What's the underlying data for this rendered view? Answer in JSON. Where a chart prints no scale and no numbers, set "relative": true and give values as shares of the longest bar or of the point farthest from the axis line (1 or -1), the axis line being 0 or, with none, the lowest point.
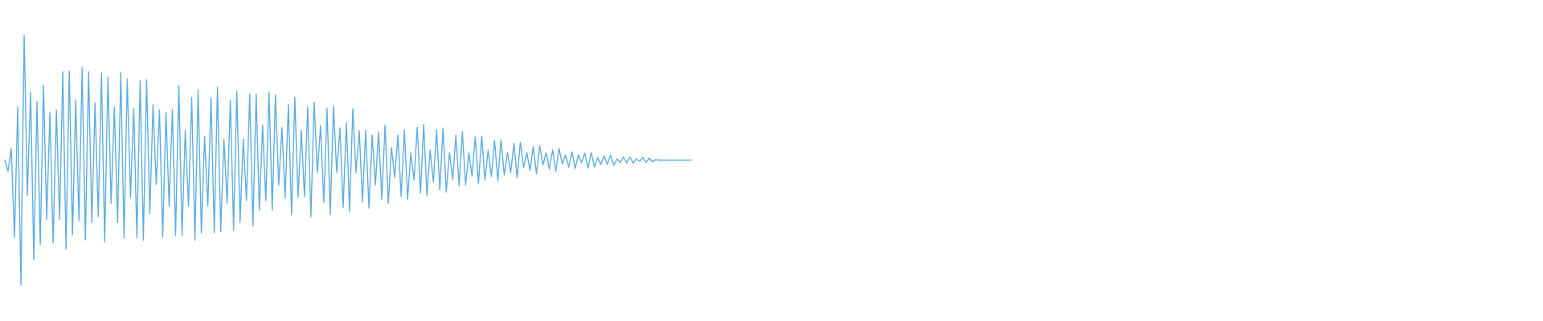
{
  "chart_data": {
    "type": "line",
    "relative": true,
    "color": "#5dade2",
    "categories": [
      null,
      null,
      null,
      null,
      null,
      null,
      null,
      null,
      null,
      null,
      null,
      null,
      null,
      null,
      null,
      null,
      null,
      null,
      null,
      null,
      null,
      null,
      null,
      null,
      null,
      null,
      null,
      null,
      null,
      null,
      null,
      null,
      null,
      null,
      null,
      null,
      null,
      null,
      null,
      null,
      null,
      null,
      null,
      null,
      null,
      null,
      null,
      null,
      null,
      null,
      null,
      null,
      null,
      null,
      null,
      null,
      null,
      null,
      null,
      null,
      null,
      null,
      null,
      null,
      null,
      null,
      null,
      null,
      null,
      null,
      null,
      null,
      null,
      null,
      null,
      null,
      null,
      null,
      null,
      null,
      null,
      null,
      null,
      null,
      null,
      null,
      null,
      null,
      null,
      null,
      null,
      null,
      null,
      null,
      null,
      null,
      null,
      null,
      null,
      null,
      null,
      null,
      null,
      null,
      null,
      null,
      null,
      null,
      null,
      null,
      null,
      null,
      null,
      null,
      null,
      null,
      null,
      null,
      null,
      null,
      null,
      null,
      null,
      null,
      null,
      null,
      null,
      null,
      null,
      null,
      null,
      null,
      null,
      null,
      null,
      null,
      null,
      null,
      null,
      null,
      null,
      null,
      null,
      null,
      null,
      null,
      null,
      null,
      null,
      null,
      null,
      null,
      null,
      null,
      null,
      null,
      null,
      null,
      null,
      null,
      null,
      null,
      null,
      null,
      null,
      null,
      null,
      null,
      null,
      null,
      null,
      null,
      null,
      null,
      null,
      null,
      null,
      null,
      null,
      null,
      null,
      null,
      null,
      null,
      null,
      null,
      null,
      null,
      null,
      null,
      null,
      null,
      null,
      null,
      null,
      null,
      null,
      null,
      null,
      null,
      null,
      null,
      null,
      null,
      null,
      null,
      null,
      null,
      null,
      null,
      null,
      null,
      null,
      null
    ],
    "values": [
      0.5,
      0.455,
      0.547,
      0.19,
      0.713,
      0,
      1,
      0.359,
      0.772,
      0.1,
      0.734,
      0.161,
      0.8,
      0.263,
      0.691,
      0.168,
      0.7,
      0.263,
      0.854,
      0.143,
      0.857,
      0.2,
      0.742,
      0.257,
      0.871,
      0.18,
      0.854,
      0.25,
      0.729,
      0.273,
      0.849,
      0.171,
      0.833,
      0.327,
      0.713,
      0.25,
      0.852,
      0.188,
      0.825,
      0.35,
      0.707,
      0.188,
      0.818,
      0.179,
      0.822,
      0.284,
      0.723,
      0.402,
      0.7,
      0.193,
      0.691,
      0.316,
      0.702,
      0.198,
      0.8,
      0.198,
      0.62,
      0.316,
      0.75,
      0.179,
      0.78,
      0.207,
      0.595,
      0.316,
      0.75,
      0.209,
      0.793,
      0.214,
      0.584,
      0.327,
      0.74,
      0.22,
      0.777,
      0.25,
      0.584,
      0.338,
      0.764,
      0.236,
      0.764,
      0.3,
      0.64,
      0.338,
      0.772,
      0.3,
      0.761,
      0.4,
      0.63,
      0.348,
      0.723,
      0.28,
      0.752,
      0.35,
      0.62,
      0.354,
      0.713,
      0.273,
      0.732,
      0.45,
      0.638,
      0.33,
      0.707,
      0.282,
      0.716,
      0.45,
      0.629,
      0.311,
      0.65,
      0.295,
      0.706,
      0.45,
      0.618,
      0.332,
      0.62,
      0.308,
      0.6,
      0.4,
      0.613,
      0.343,
      0.64,
      0.327,
      0.55,
      0.43,
      0.6,
      0.354,
      0.62,
      0.343,
      0.53,
      0.42,
      0.632,
      0.368,
      0.643,
      0.359,
      0.54,
      0.413,
      0.62,
      0.38,
      0.629,
      0.372,
      0.53,
      0.423,
      0.6,
      0.397,
      0.614,
      0.4,
      0.53,
      0.436,
      0.593,
      0.407,
      0.597,
      0.42,
      0.54,
      0.434,
      0.579,
      0.418,
      0.582,
      0.44,
      0.53,
      0.45,
      0.568,
      0.429,
      0.571,
      0.47,
      0.53,
      0.458,
      0.554,
      0.445,
      0.557,
      0.48,
      0.53,
      0.464,
      0.541,
      0.455,
      0.547,
      0.485,
      0.52,
      0.472,
      0.533,
      0.466,
      0.52,
      0.49,
      0.528,
      0.468,
      0.531,
      0.472,
      0.51,
      0.482,
      0.518,
      0.482,
      0.52,
      0.479,
      0.505,
      0.49,
      0.512,
      0.488,
      0.513,
      0.488,
      0.505,
      0.495,
      0.511,
      0.491,
      0.508,
      0.493,
      0.502,
      0.5,
      0.5,
      0.5,
      0.5,
      0.5,
      0.5,
      0.5,
      0.5,
      0.5,
      0.5,
      0.5
    ]
  }
}
